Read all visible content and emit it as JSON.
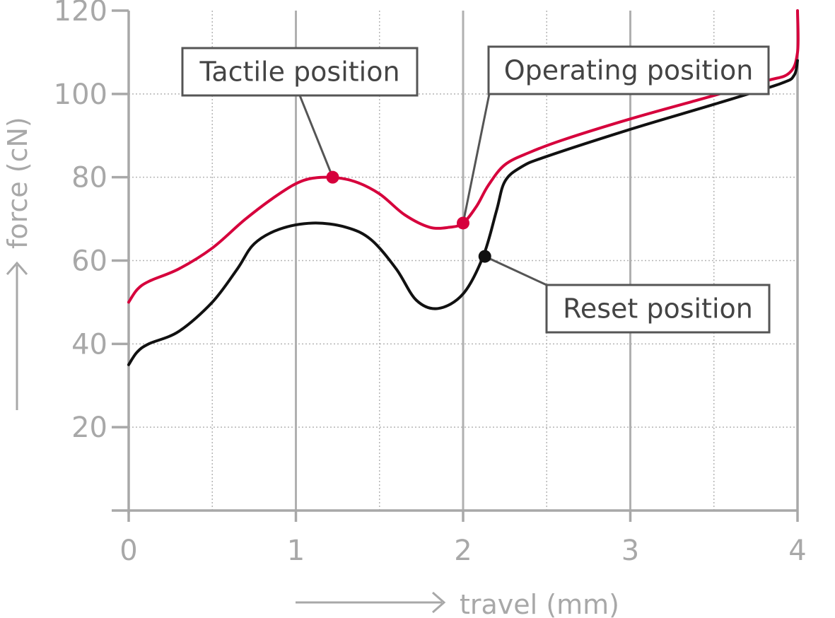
{
  "chart_data": {
    "type": "line",
    "xlabel": "travel (mm)",
    "ylabel": "force (cN)",
    "xlim": [
      0,
      4
    ],
    "ylim": [
      0,
      120
    ],
    "x_ticks": [
      "0",
      "1",
      "2",
      "3",
      "4"
    ],
    "y_ticks": [
      "20",
      "40",
      "60",
      "80",
      "100",
      "120"
    ],
    "grid": true,
    "series": [
      {
        "color": "#d6003c",
        "points": [
          [
            0,
            50
          ],
          [
            0.05,
            53
          ],
          [
            0.12,
            55
          ],
          [
            0.3,
            58
          ],
          [
            0.5,
            63
          ],
          [
            0.7,
            70
          ],
          [
            0.9,
            76
          ],
          [
            1.05,
            79.3
          ],
          [
            1.2,
            80
          ],
          [
            1.35,
            79
          ],
          [
            1.5,
            76
          ],
          [
            1.65,
            71
          ],
          [
            1.8,
            68
          ],
          [
            1.92,
            68
          ],
          [
            2.0,
            69
          ],
          [
            2.08,
            73
          ],
          [
            2.15,
            78
          ],
          [
            2.25,
            83
          ],
          [
            2.4,
            86
          ],
          [
            2.6,
            89
          ],
          [
            3.0,
            94
          ],
          [
            3.4,
            98.5
          ],
          [
            3.8,
            103
          ],
          [
            3.95,
            105
          ],
          [
            4.0,
            110
          ],
          [
            4.0,
            120
          ]
        ]
      },
      {
        "color": "#111111",
        "points": [
          [
            0,
            35
          ],
          [
            0.05,
            38
          ],
          [
            0.12,
            40
          ],
          [
            0.3,
            43
          ],
          [
            0.5,
            50
          ],
          [
            0.65,
            58
          ],
          [
            0.75,
            64
          ],
          [
            0.9,
            67.5
          ],
          [
            1.1,
            69
          ],
          [
            1.3,
            68
          ],
          [
            1.45,
            65
          ],
          [
            1.6,
            58
          ],
          [
            1.72,
            50.5
          ],
          [
            1.85,
            48.5
          ],
          [
            2.0,
            52
          ],
          [
            2.12,
            61
          ],
          [
            2.2,
            72
          ],
          [
            2.25,
            79
          ],
          [
            2.35,
            82.5
          ],
          [
            2.5,
            85
          ],
          [
            3.0,
            91.5
          ],
          [
            3.5,
            97.5
          ],
          [
            3.9,
            102.5
          ],
          [
            3.98,
            104.5
          ],
          [
            4.0,
            108
          ]
        ]
      }
    ],
    "annotations": [
      {
        "label": "Tactile position",
        "x": 1.22,
        "y": 80,
        "marker_color": "#d6003c"
      },
      {
        "label": "Operating position",
        "x": 2.0,
        "y": 69,
        "marker_color": "#d6003c"
      },
      {
        "label": "Reset position",
        "x": 2.13,
        "y": 61,
        "marker_color": "#111111"
      }
    ]
  }
}
